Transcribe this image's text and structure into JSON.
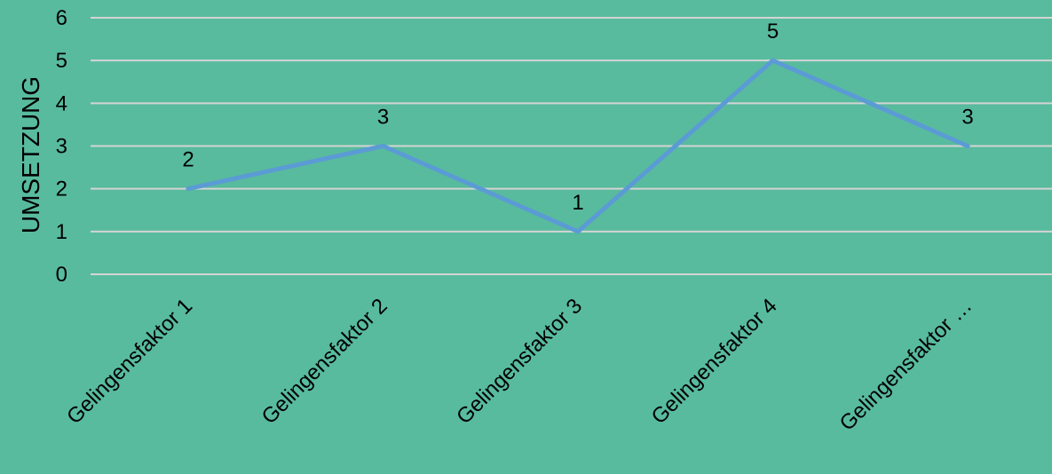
{
  "chart_data": {
    "type": "line",
    "categories": [
      "Gelingensfaktor 1",
      "Gelingensfaktor 2",
      "Gelingensfaktor 3",
      "Gelingensfaktor 4",
      "Gelingensfaktor …"
    ],
    "series": [
      {
        "values": [
          2,
          3,
          1,
          5,
          3
        ]
      }
    ],
    "xlabel": "",
    "ylabel": "UMSETZUNG",
    "ylim": [
      0,
      6
    ],
    "yticks": [
      0,
      1,
      2,
      3,
      4,
      5,
      6
    ],
    "grid": true,
    "data_labels": true,
    "legend": "none"
  },
  "colors": {
    "background": "#58BB9D",
    "grid": "#D4D4D4",
    "line": "#5B9BD5",
    "text": "#000000"
  }
}
